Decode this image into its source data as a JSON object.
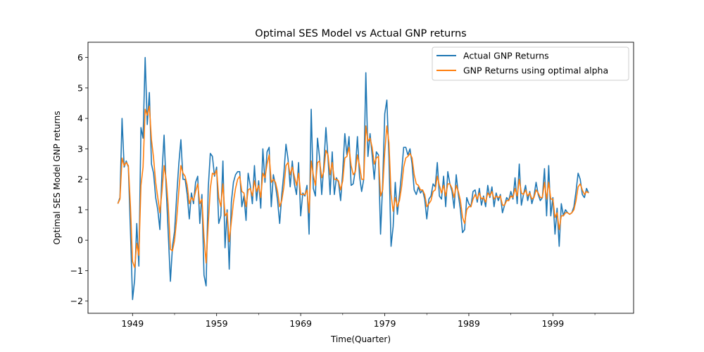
{
  "chart_data": {
    "type": "line",
    "title": "Optimal SES Model vs Actual GNP returns",
    "xlabel": "Time(Quarter)",
    "ylabel": "Optimal SES Model GNP returns",
    "xlim": [
      1943.7,
      2008.6
    ],
    "ylim": [
      -2.4,
      6.5
    ],
    "x_ticks": [
      1949,
      1959,
      1969,
      1979,
      1989,
      1999
    ],
    "x_minor_ticks": [
      1954,
      1964,
      1974,
      1984,
      1994,
      2004
    ],
    "y_ticks": [
      -2,
      -1,
      0,
      1,
      2,
      3,
      4,
      5,
      6
    ],
    "legend_position": "top-right",
    "colors": {
      "actual": "#1f77b4",
      "fitted": "#ff7f0e"
    },
    "x_start": 1947.25,
    "x_step": 0.25,
    "series": [
      {
        "name": "Actual GNP Returns",
        "values": [
          1.2,
          1.4,
          4.0,
          2.4,
          2.6,
          2.4,
          0.3,
          -1.95,
          -1.3,
          0.55,
          -0.85,
          3.7,
          3.35,
          6.0,
          3.8,
          4.85,
          2.5,
          2.2,
          1.4,
          1.0,
          0.35,
          2.2,
          3.45,
          1.7,
          0.2,
          -1.35,
          -0.2,
          0.3,
          1.45,
          2.5,
          3.3,
          2.0,
          2.0,
          1.5,
          0.7,
          1.55,
          1.2,
          1.9,
          2.1,
          0.55,
          1.5,
          -1.15,
          -1.5,
          1.7,
          2.85,
          2.75,
          2.1,
          2.4,
          0.55,
          0.8,
          2.6,
          -0.25,
          1.0,
          -0.95,
          1.25,
          1.9,
          2.15,
          2.25,
          2.25,
          1.1,
          1.45,
          0.65,
          2.2,
          1.8,
          1.2,
          2.45,
          1.3,
          1.95,
          1.05,
          3.0,
          1.9,
          2.9,
          3.05,
          1.1,
          2.15,
          1.8,
          1.3,
          0.55,
          1.5,
          2.2,
          3.15,
          2.65,
          1.75,
          2.6,
          1.85,
          1.5,
          2.55,
          0.8,
          1.55,
          1.45,
          1.8,
          0.2,
          4.3,
          1.7,
          1.45,
          3.35,
          2.7,
          1.5,
          2.45,
          3.7,
          2.7,
          1.5,
          2.9,
          1.5,
          2.05,
          1.9,
          1.3,
          2.25,
          3.5,
          2.8,
          3.4,
          1.8,
          1.85,
          2.3,
          3.4,
          2.1,
          1.6,
          2.0,
          5.5,
          2.75,
          3.5,
          2.8,
          2.0,
          2.9,
          2.8,
          0.2,
          1.85,
          4.15,
          4.6,
          2.7,
          -0.2,
          0.45,
          1.9,
          0.85,
          1.5,
          2.2,
          3.05,
          3.05,
          2.8,
          3.0,
          2.5,
          1.65,
          1.5,
          1.75,
          1.55,
          1.65,
          1.35,
          0.7,
          1.35,
          1.45,
          1.85,
          1.75,
          2.55,
          1.45,
          1.35,
          2.1,
          1.1,
          2.25,
          1.85,
          1.6,
          1.05,
          2.15,
          1.5,
          1.0,
          0.25,
          0.35,
          1.4,
          1.2,
          1.1,
          1.6,
          1.65,
          1.25,
          1.7,
          1.15,
          1.45,
          1.1,
          1.8,
          1.4,
          1.75,
          1.1,
          1.55,
          1.3,
          1.5,
          0.9,
          1.15,
          1.4,
          1.3,
          1.6,
          1.35,
          2.05,
          1.2,
          2.5,
          1.15,
          1.5,
          1.8,
          1.3,
          1.6,
          1.2,
          1.45,
          1.9,
          1.5,
          1.3,
          1.4,
          2.35,
          0.8,
          2.45,
          0.8,
          1.4,
          0.2,
          1.05,
          -0.2,
          1.2,
          0.8,
          1.0,
          0.9,
          0.85,
          0.9,
          1.1,
          1.6,
          2.2,
          2.0,
          1.5,
          1.4,
          1.7,
          1.55
        ]
      },
      {
        "name": "GNP Returns using optimal alpha",
        "values": [
          1.2,
          1.35,
          2.7,
          2.45,
          2.55,
          2.45,
          1.1,
          -0.7,
          -0.9,
          -0.1,
          -0.5,
          1.8,
          2.4,
          4.3,
          4.1,
          4.4,
          3.3,
          2.7,
          1.9,
          1.4,
          0.9,
          1.6,
          2.45,
          2.0,
          1.1,
          -0.3,
          -0.35,
          0.0,
          0.7,
          1.6,
          2.45,
          2.2,
          2.1,
          1.8,
          1.2,
          1.4,
          1.3,
          1.6,
          1.85,
          1.2,
          1.35,
          0.1,
          -0.75,
          0.5,
          1.7,
          2.2,
          2.15,
          2.3,
          1.4,
          1.1,
          1.85,
          0.8,
          0.9,
          -0.05,
          0.6,
          1.25,
          1.7,
          2.0,
          2.1,
          1.6,
          1.55,
          1.1,
          1.65,
          1.7,
          1.45,
          1.95,
          1.6,
          1.8,
          1.4,
          2.2,
          2.05,
          2.5,
          2.8,
          1.9,
          2.0,
          1.9,
          1.6,
          1.1,
          1.3,
          1.75,
          2.45,
          2.55,
          2.15,
          2.4,
          2.1,
          1.8,
          2.2,
          1.5,
          1.5,
          1.5,
          1.65,
          0.9,
          2.6,
          2.15,
          1.8,
          2.55,
          2.6,
          2.05,
          2.25,
          2.95,
          2.8,
          2.15,
          2.55,
          2.0,
          2.0,
          1.95,
          1.65,
          1.95,
          2.7,
          2.75,
          3.05,
          2.45,
          2.15,
          2.25,
          2.8,
          2.45,
          2.0,
          2.0,
          3.75,
          3.25,
          3.35,
          3.05,
          2.5,
          2.7,
          2.75,
          1.45,
          1.65,
          2.9,
          3.75,
          3.2,
          1.5,
          0.95,
          1.4,
          1.1,
          1.3,
          1.75,
          2.4,
          2.7,
          2.75,
          2.85,
          2.7,
          2.15,
          1.85,
          1.8,
          1.65,
          1.65,
          1.5,
          1.1,
          1.2,
          1.3,
          1.6,
          1.65,
          2.1,
          1.8,
          1.55,
          1.8,
          1.45,
          1.85,
          1.85,
          1.7,
          1.4,
          1.8,
          1.6,
          1.3,
          0.75,
          0.55,
          1.0,
          1.1,
          1.1,
          1.35,
          1.5,
          1.35,
          1.55,
          1.35,
          1.4,
          1.25,
          1.55,
          1.45,
          1.6,
          1.35,
          1.45,
          1.4,
          1.45,
          1.15,
          1.15,
          1.3,
          1.3,
          1.45,
          1.4,
          1.7,
          1.45,
          2.0,
          1.55,
          1.5,
          1.65,
          1.45,
          1.55,
          1.35,
          1.4,
          1.65,
          1.55,
          1.4,
          1.4,
          1.9,
          1.35,
          1.9,
          1.35,
          1.35,
          0.75,
          0.9,
          0.35,
          0.8,
          0.8,
          0.9,
          0.9,
          0.85,
          0.9,
          1.0,
          1.3,
          1.75,
          1.85,
          1.65,
          1.5,
          1.6,
          1.55
        ]
      }
    ]
  }
}
